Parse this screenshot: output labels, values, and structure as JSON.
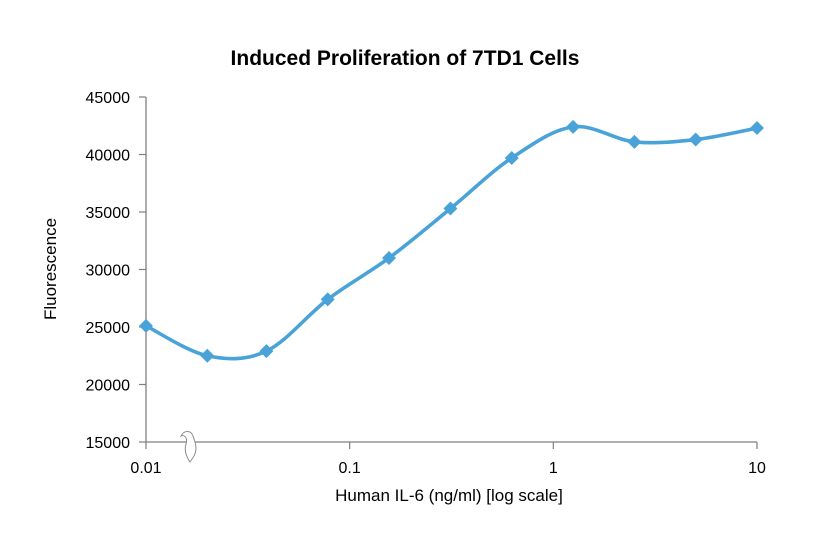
{
  "chart_data": {
    "type": "line",
    "title": "Induced Proliferation of 7TD1 Cells",
    "xlabel": "Human IL-6 (ng/ml) [log scale]",
    "ylabel": "Fluorescence",
    "x_scale": "log",
    "xlim": [
      0.01,
      10
    ],
    "ylim": [
      15000,
      45000
    ],
    "x_ticks": [
      0.01,
      0.1,
      1,
      10
    ],
    "x_tick_labels": [
      "0.01",
      "0.1",
      "1",
      "10"
    ],
    "y_ticks": [
      15000,
      20000,
      25000,
      30000,
      35000,
      40000,
      45000
    ],
    "y_tick_labels": [
      "15000",
      "20000",
      "25000",
      "30000",
      "35000",
      "40000",
      "45000"
    ],
    "axis_break_on_x": true,
    "grid": false,
    "legend": "none",
    "smoothed": true,
    "marker": "diamond",
    "series": [
      {
        "color": "#4aa3d8",
        "x": [
          0.01,
          0.02,
          0.039,
          0.078,
          0.156,
          0.3125,
          0.625,
          1.25,
          2.5,
          5,
          10
        ],
        "y": [
          25100,
          22500,
          22900,
          27400,
          31000,
          35300,
          39700,
          42400,
          41100,
          41300,
          42300
        ]
      }
    ]
  }
}
